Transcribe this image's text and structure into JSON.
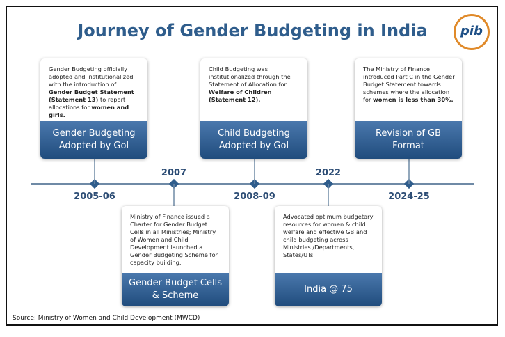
{
  "title": "Journey of Gender Budgeting in India",
  "logo": "pib",
  "timeline": {
    "years": [
      "2005-06",
      "2007",
      "2008-09",
      "2022",
      "2024-25"
    ]
  },
  "top_cards": [
    {
      "description": [
        {
          "text": "Gender Budgeting officially adopted and institutionalized with the introduction of ",
          "bold": false
        },
        {
          "text": "Gender Budget Statement (Statement 13)",
          "bold": true
        },
        {
          "text": " to report allocations for ",
          "bold": false
        },
        {
          "text": "women and girls.",
          "bold": true
        }
      ],
      "label": "Gender Budgeting Adopted by GoI"
    },
    {
      "description": [
        {
          "text": "Child Budgeting was institutionalized through the Statement of Allocation for ",
          "bold": false
        },
        {
          "text": "Welfare of Children (Statement 12).",
          "bold": true
        }
      ],
      "label": "Child Budgeting Adopted by GoI"
    },
    {
      "description": [
        {
          "text": "The Ministry of Finance introduced Part C in the Gender Budget Statement towards schemes where the allocation for ",
          "bold": false
        },
        {
          "text": "women is less than 30%.",
          "bold": true
        }
      ],
      "label": "Revision of GB Format"
    }
  ],
  "bottom_cards": [
    {
      "description": [
        {
          "text": "Ministry of Finance issued a Charter for Gender Budget Cells in all Ministries; Ministry of Women and Child Development launched a Gender Budgeting Scheme for capacity building.",
          "bold": false
        }
      ],
      "label": "Gender Budget Cells & Scheme"
    },
    {
      "description": [
        {
          "text": "Advocated optimum budgetary resources for women & child welfare and effective GB and child budgeting across Ministries /Departments, States/UTs.",
          "bold": false
        }
      ],
      "label": "India @ 75"
    }
  ],
  "source": "Source: Ministry of Women and Child Development (MWCD)"
}
